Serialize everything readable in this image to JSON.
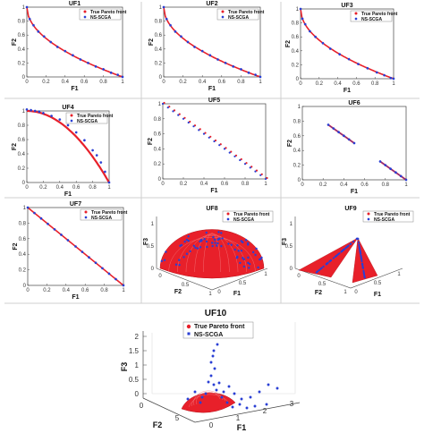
{
  "legend": {
    "true_front": "True Pareto front",
    "algorithm": "NS-SCGA"
  },
  "colors": {
    "true_front": "#e8202a",
    "algorithm": "#2a3fd4",
    "frame": "#444444",
    "divider": "#cfcfcf"
  },
  "chart_data": [
    {
      "id": "UF1",
      "type": "scatter",
      "title": "UF1",
      "xlabel": "F1",
      "ylabel": "F2",
      "legend": "top-right",
      "xlim": [
        0,
        1
      ],
      "ylim": [
        0,
        1
      ],
      "xticks": [
        "0",
        "0.2",
        "0.4",
        "0.6",
        "0.8",
        "1"
      ],
      "yticks": [
        "0",
        "0.2",
        "0.4",
        "0.6",
        "0.8",
        "1"
      ],
      "true_front": "f2 = 1 - sqrt(f1)",
      "series": [
        {
          "name": "NS-SCGA",
          "x": [
            0,
            0.03,
            0.07,
            0.12,
            0.18,
            0.25,
            0.32,
            0.4,
            0.48,
            0.56,
            0.64,
            0.72,
            0.8,
            0.88,
            0.95,
            1
          ],
          "y": [
            1,
            0.83,
            0.74,
            0.65,
            0.58,
            0.5,
            0.43,
            0.37,
            0.31,
            0.25,
            0.2,
            0.15,
            0.11,
            0.06,
            0.03,
            0
          ]
        }
      ]
    },
    {
      "id": "UF2",
      "type": "scatter",
      "title": "UF2",
      "xlabel": "F1",
      "ylabel": "F2",
      "legend": "top-right",
      "xlim": [
        0,
        1
      ],
      "ylim": [
        0,
        1
      ],
      "xticks": [
        "0",
        "0.2",
        "0.4",
        "0.6",
        "0.8",
        "1"
      ],
      "yticks": [
        "0",
        "0.2",
        "0.4",
        "0.6",
        "0.8",
        "1"
      ],
      "true_front": "f2 = 1 - sqrt(f1)",
      "series": [
        {
          "name": "NS-SCGA",
          "x": [
            0,
            0.03,
            0.07,
            0.12,
            0.18,
            0.25,
            0.32,
            0.4,
            0.48,
            0.56,
            0.64,
            0.72,
            0.8,
            0.88,
            0.95,
            1
          ],
          "y": [
            1,
            0.83,
            0.74,
            0.65,
            0.58,
            0.5,
            0.43,
            0.37,
            0.31,
            0.25,
            0.2,
            0.15,
            0.11,
            0.06,
            0.03,
            0
          ]
        }
      ]
    },
    {
      "id": "UF3",
      "type": "scatter",
      "title": "UF3",
      "xlabel": "F1",
      "ylabel": "F2",
      "legend": "top-right",
      "xlim": [
        0,
        1
      ],
      "ylim": [
        0,
        1
      ],
      "xticks": [
        "0",
        "0.2",
        "0.4",
        "0.6",
        "0.8",
        "1"
      ],
      "yticks": [
        "0",
        "0.2",
        "0.4",
        "0.6",
        "0.8",
        "1"
      ],
      "true_front": "f2 = 1 - sqrt(f1)",
      "series": [
        {
          "name": "NS-SCGA",
          "x": [
            0,
            0.02,
            0.05,
            0.1,
            0.16,
            0.24,
            0.32,
            0.42,
            0.52,
            0.62,
            0.72,
            0.82,
            0.9,
            0.97,
            1
          ],
          "y": [
            1,
            0.86,
            0.78,
            0.68,
            0.6,
            0.51,
            0.43,
            0.35,
            0.28,
            0.21,
            0.15,
            0.09,
            0.05,
            0.01,
            0
          ]
        }
      ]
    },
    {
      "id": "UF4",
      "type": "scatter",
      "title": "UF4",
      "xlabel": "F1",
      "ylabel": "F2",
      "legend": "top-right",
      "xlim": [
        0,
        1
      ],
      "ylim": [
        0,
        1
      ],
      "xticks": [
        "0",
        "0.2",
        "0.4",
        "0.6",
        "0.8",
        "1"
      ],
      "yticks": [
        "0",
        "0.2",
        "0.4",
        "0.6",
        "0.8",
        "1"
      ],
      "true_front": "f2 = 1 - f1^2",
      "series": [
        {
          "name": "NS-SCGA",
          "x": [
            0,
            0.05,
            0.1,
            0.15,
            0.2,
            0.3,
            0.4,
            0.5,
            0.6,
            0.7,
            0.8,
            0.85,
            0.9,
            0.95,
            1
          ],
          "y": [
            1.02,
            1.01,
            1.0,
            0.99,
            0.97,
            0.93,
            0.88,
            0.8,
            0.7,
            0.59,
            0.45,
            0.38,
            0.28,
            0.15,
            0
          ]
        }
      ]
    },
    {
      "id": "UF5",
      "type": "scatter",
      "title": "UF5",
      "xlabel": "F1",
      "ylabel": "F2",
      "xlim": [
        0,
        1
      ],
      "ylim": [
        0,
        1
      ],
      "xticks": [
        "0",
        "0.2",
        "0.4",
        "0.6",
        "0.8",
        "1"
      ],
      "yticks": [
        "0",
        "0.2",
        "0.4",
        "0.6",
        "0.8",
        "1"
      ],
      "true_front": "21 discrete points on f2 = 1 - f1",
      "series": [
        {
          "name": "NS-SCGA",
          "x": [
            0,
            0.05,
            0.1,
            0.15,
            0.2,
            0.25,
            0.3,
            0.35,
            0.4,
            0.45,
            0.5,
            0.55,
            0.6,
            0.65,
            0.7,
            0.75,
            0.8,
            0.85,
            0.9,
            0.95,
            1
          ],
          "y": [
            1,
            0.95,
            0.9,
            0.85,
            0.8,
            0.75,
            0.7,
            0.65,
            0.6,
            0.55,
            0.5,
            0.45,
            0.4,
            0.35,
            0.3,
            0.25,
            0.2,
            0.15,
            0.1,
            0.05,
            0
          ]
        }
      ]
    },
    {
      "id": "UF6",
      "type": "scatter",
      "title": "UF6",
      "xlabel": "F1",
      "ylabel": "F2",
      "xlim": [
        0,
        1
      ],
      "ylim": [
        0,
        1
      ],
      "xticks": [
        "0",
        "0.2",
        "0.4",
        "0.6",
        "0.8",
        "1"
      ],
      "yticks": [
        "0",
        "0.2",
        "0.4",
        "0.6",
        "0.8",
        "1"
      ],
      "true_front": "segments of f2 = 1 - f1 for f1 in [0.25,0.5] and [0.75,1]",
      "series": [
        {
          "name": "NS-SCGA",
          "x": [
            0.25,
            0.3,
            0.35,
            0.4,
            0.45,
            0.5,
            0.75,
            0.8,
            0.85,
            0.9,
            0.95,
            1
          ],
          "y": [
            0.75,
            0.7,
            0.65,
            0.6,
            0.55,
            0.5,
            0.25,
            0.2,
            0.15,
            0.1,
            0.05,
            0
          ]
        }
      ]
    },
    {
      "id": "UF7",
      "type": "scatter",
      "title": "UF7",
      "xlabel": "F1",
      "ylabel": "F2",
      "legend": "top-right",
      "xlim": [
        0,
        1
      ],
      "ylim": [
        0,
        1
      ],
      "xticks": [
        "0",
        "0.2",
        "0.4",
        "0.6",
        "0.8",
        "1"
      ],
      "yticks": [
        "0",
        "0.2",
        "0.4",
        "0.6",
        "0.8",
        "1"
      ],
      "true_front": "f2 = 1 - f1",
      "series": [
        {
          "name": "NS-SCGA",
          "x": [
            0,
            0.07,
            0.14,
            0.21,
            0.28,
            0.35,
            0.42,
            0.5,
            0.57,
            0.64,
            0.71,
            0.78,
            0.85,
            0.92,
            1
          ],
          "y": [
            1,
            0.93,
            0.86,
            0.79,
            0.72,
            0.65,
            0.58,
            0.5,
            0.43,
            0.36,
            0.29,
            0.22,
            0.15,
            0.08,
            0
          ]
        }
      ]
    },
    {
      "id": "UF8",
      "type": "scatter",
      "title": "UF8",
      "xlabel": "F1",
      "ylabel": "F2",
      "zlabel": "F3",
      "legend": "top-right",
      "xticks": [
        "0",
        "0.5",
        "1"
      ],
      "yticks": [
        "0",
        "0.5",
        "1"
      ],
      "zticks": [
        "0",
        "0.5",
        "1"
      ],
      "true_front": "f1^2 + f2^2 + f3^2 = 1"
    },
    {
      "id": "UF9",
      "type": "scatter",
      "title": "UF9",
      "xlabel": "F1",
      "ylabel": "F2",
      "zlabel": "F3",
      "legend": "top-right",
      "xticks": [
        "0",
        "0.5",
        "1"
      ],
      "yticks": [
        "0",
        "0.5",
        "1"
      ],
      "zticks": [
        "0",
        "0.5",
        "1"
      ],
      "true_front": "two planar triangles f1 + f2 + f3 = 1"
    },
    {
      "id": "UF10",
      "type": "scatter",
      "title": "UF10",
      "xlabel": "F1",
      "ylabel": "F2",
      "zlabel": "F3",
      "legend": "top-right",
      "xticks": [
        "0",
        "1",
        "2",
        "3"
      ],
      "yticks": [
        "0",
        "5"
      ],
      "zticks": [
        "0",
        "0.5",
        "1",
        "1.5",
        "2"
      ],
      "true_front": "f1^2 + f2^2 + f3^2 = 1"
    }
  ]
}
